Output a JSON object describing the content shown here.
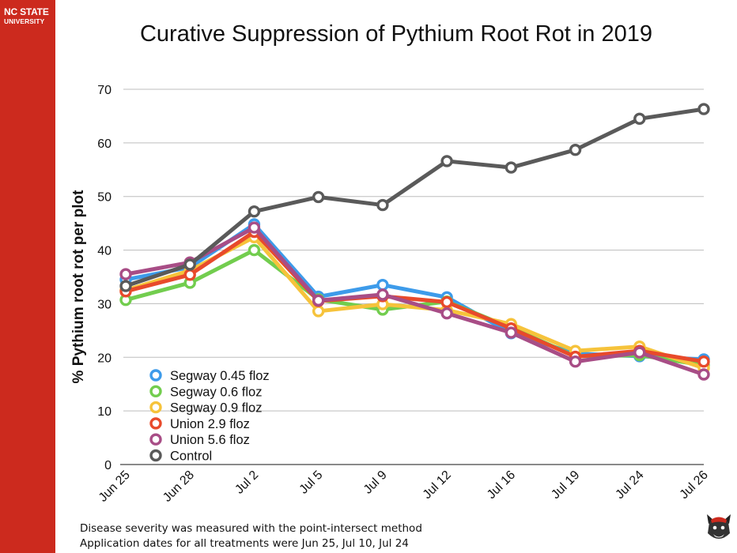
{
  "brand": {
    "line1": "NC STATE",
    "line2": "UNIVERSITY"
  },
  "notes": [
    "Disease severity was measured with the point-intersect method",
    "Application dates for all treatments were Jun 25, Jul 10, Jul 24"
  ],
  "chart_data": {
    "type": "line",
    "title": "Curative Suppression of Pythium Root Rot in 2019",
    "xlabel": "",
    "ylabel": "% Pythium root rot per plot",
    "categories": [
      "Jun 25",
      "Jun 28",
      "Jul 2",
      "Jul 5",
      "Jul 9",
      "Jul 12",
      "Jul 16",
      "Jul 19",
      "Jul 24",
      "Jul 26"
    ],
    "ylim": [
      0,
      70
    ],
    "yticks": [
      0,
      10,
      20,
      30,
      40,
      50,
      60,
      70
    ],
    "grid": true,
    "legend_position": "bottom-left",
    "series": [
      {
        "name": "Segway 0.45 floz",
        "color": "#3d9bea",
        "values": [
          34.5,
          36.8,
          44.8,
          31.3,
          33.5,
          31.2,
          24.5,
          20.7,
          20.2,
          19.6
        ]
      },
      {
        "name": "Segway 0.6 floz",
        "color": "#72cd4e",
        "values": [
          30.7,
          33.9,
          40.0,
          30.8,
          28.9,
          30.4,
          25.5,
          20.2,
          20.4,
          18.5
        ]
      },
      {
        "name": "Segway 0.9 floz",
        "color": "#f6c33b",
        "values": [
          32.5,
          36.2,
          42.4,
          28.6,
          29.9,
          28.8,
          26.2,
          21.2,
          22.0,
          18.0
        ]
      },
      {
        "name": "Union 2.9 floz",
        "color": "#e84a2b",
        "values": [
          32.3,
          35.4,
          43.4,
          30.5,
          31.4,
          30.3,
          25.4,
          20.1,
          21.2,
          19.2
        ]
      },
      {
        "name": "Union 5.6 floz",
        "color": "#a84d86",
        "values": [
          35.5,
          37.7,
          44.2,
          30.6,
          31.7,
          28.2,
          24.6,
          19.2,
          20.9,
          16.8
        ]
      },
      {
        "name": "Control",
        "color": "#5a5a5a",
        "values": [
          33.3,
          37.3,
          47.2,
          49.9,
          48.4,
          56.6,
          55.4,
          58.7,
          64.5,
          66.3
        ]
      }
    ]
  }
}
